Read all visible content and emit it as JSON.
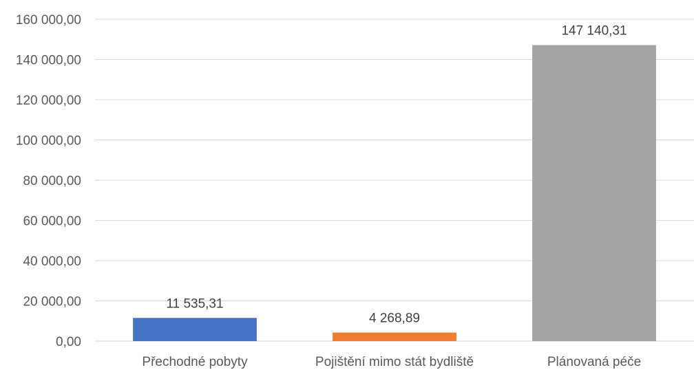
{
  "chart_data": {
    "type": "bar",
    "categories": [
      "Přechodné pobyty",
      "Pojištění mimo stát bydliště",
      "Plánovaná péče"
    ],
    "values": [
      11535.31,
      4268.89,
      147140.31
    ],
    "data_labels": [
      "11 535,31",
      "4 268,89",
      "147 140,31"
    ],
    "colors": [
      "#4472c4",
      "#ed7d31",
      "#a5a5a5"
    ],
    "ylim": [
      0,
      160000
    ],
    "yticks": [
      0,
      20000,
      40000,
      60000,
      80000,
      100000,
      120000,
      140000,
      160000
    ],
    "ytick_labels": [
      "0,00",
      "20 000,00",
      "40 000,00",
      "60 000,00",
      "80 000,00",
      "100 000,00",
      "120 000,00",
      "140 000,00",
      "160 000,00"
    ],
    "grid": true,
    "legend": "none"
  }
}
